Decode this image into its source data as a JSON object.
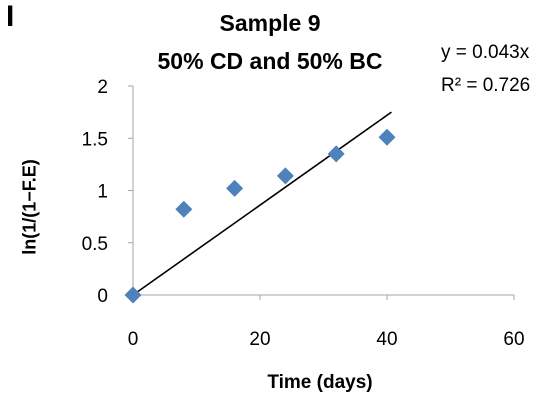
{
  "panel_label": "I",
  "chart_data": {
    "type": "scatter",
    "title": "Sample 9",
    "subtitle": "50% CD and 50% BC",
    "xlabel": "Time (days)",
    "ylabel": "ln(1/(1−F.E)",
    "xlim": [
      0,
      60
    ],
    "ylim": [
      0,
      2
    ],
    "x_ticks": [
      "0",
      "20",
      "40",
      "60"
    ],
    "y_ticks": [
      "0",
      "0.5",
      "1",
      "1.5",
      "2"
    ],
    "grid": false,
    "marker_color": "#4f81bd",
    "line_color": "#000000",
    "series": [
      {
        "x": [
          0,
          8,
          16,
          24,
          32,
          40
        ],
        "y": [
          0,
          0.82,
          1.02,
          1.14,
          1.35,
          1.51
        ]
      }
    ],
    "trendline": {
      "type": "linear",
      "slope": 0.043,
      "equation": "y = 0.043x",
      "r_squared": "R² = 0.726",
      "x_range": [
        0,
        40.7
      ]
    }
  }
}
